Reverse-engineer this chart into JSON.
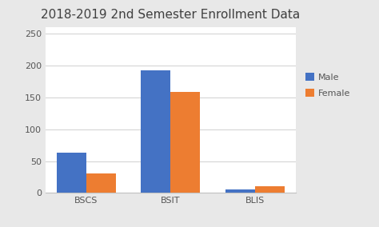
{
  "title": "2018-2019 2nd Semester Enrollment Data",
  "categories": [
    "BSCS",
    "BSIT",
    "BLIS"
  ],
  "male_values": [
    63,
    192,
    5
  ],
  "female_values": [
    30,
    158,
    10
  ],
  "male_color": "#4472C4",
  "female_color": "#ED7D31",
  "ylim": [
    0,
    260
  ],
  "yticks": [
    0,
    50,
    100,
    150,
    200,
    250
  ],
  "legend_labels": [
    "Male",
    "Female"
  ],
  "bar_width": 0.35,
  "fig_background_color": "#e8e8e8",
  "plot_background_color": "#ffffff",
  "title_fontsize": 11,
  "tick_fontsize": 8,
  "legend_fontsize": 8,
  "grid_color": "#d0d0d0",
  "spine_color": "#c0c0c0",
  "tick_color": "#555555"
}
